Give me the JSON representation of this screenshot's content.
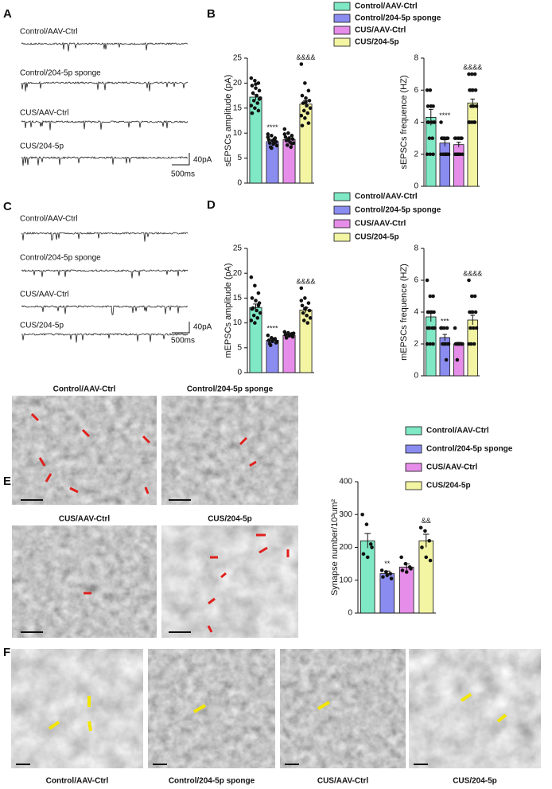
{
  "panel_letters": [
    "A",
    "B",
    "C",
    "D",
    "E",
    "F"
  ],
  "traces_A": [
    "Control/AAV-Ctrl",
    "Control/204-5p sponge",
    "CUS/AAV-Ctrl",
    "CUS/204-5p"
  ],
  "scale_A": {
    "y": "40pA",
    "x": "500ms"
  },
  "traces_C": [
    "Control/AAV-Ctrl",
    "Control/204-5p sponge",
    "CUS/AAV-Ctrl",
    "CUS/204-5p"
  ],
  "scale_C": {
    "y": "40pA",
    "x": "500ms"
  },
  "em_images": [
    "Control/AAV-Ctrl",
    "Control/204-5p sponge",
    "CUS/AAV-Ctrl",
    "CUS/204-5p"
  ],
  "f_images": [
    "Control/AAV-Ctrl",
    "Control/204-5p sponge",
    "CUS/AAV-Ctrl",
    "CUS/204-5p"
  ],
  "chart_data": [
    {
      "type": "bar",
      "ylabel": "sEPSCs amplitude (pA)",
      "legend": true,
      "categories": [
        "Control/AAV-Ctrl",
        "Control/204-5p sponge",
        "CUS/AAV-Ctrl",
        "CUS/204-5p"
      ],
      "colors": [
        "#7fe8c4",
        "#8b8cf0",
        "#e58de8",
        "#f3f5a3"
      ],
      "values": [
        17.2,
        8.3,
        8.7,
        15.8
      ],
      "errors": [
        0.5,
        0.3,
        0.3,
        0.7
      ],
      "points": [
        [
          21,
          20.5,
          20,
          19.5,
          19,
          18.5,
          18,
          17.5,
          17,
          16.5,
          16,
          15.5,
          15,
          14.5,
          14,
          19.8,
          16.8
        ],
        [
          9.8,
          9.5,
          9,
          8.7,
          8.5,
          8.3,
          8,
          7.8,
          7.5,
          7.2,
          8.8,
          9.2,
          7,
          8.1
        ],
        [
          10.8,
          10,
          9.5,
          9.2,
          9,
          8.8,
          8.5,
          8.2,
          8,
          7.6,
          7.2,
          9.8,
          8.6,
          7.9
        ],
        [
          23.8,
          20,
          18.5,
          17.5,
          17,
          16.5,
          16,
          15.5,
          15,
          14.5,
          14,
          13.5,
          13,
          12,
          11.5,
          16.2
        ]
      ],
      "annotations": [
        null,
        "****",
        null,
        "&&&&"
      ],
      "ylim": [
        0,
        25
      ],
      "yticks": [
        0,
        5,
        10,
        15,
        20,
        25
      ]
    },
    {
      "type": "bar",
      "ylabel": "sEPSCs frequence (HZ)",
      "legend": false,
      "colors": [
        "#7fe8c4",
        "#8b8cf0",
        "#e58de8",
        "#f3f5a3"
      ],
      "values": [
        4.3,
        2.7,
        2.6,
        5.2
      ],
      "errors": [
        0.5,
        0.2,
        0.15,
        0.25
      ],
      "points": [
        [
          6,
          6,
          5,
          5,
          5,
          4,
          4,
          4,
          4,
          3,
          3,
          2,
          2,
          2,
          4,
          5
        ],
        [
          4,
          3,
          3,
          3,
          3,
          3,
          3,
          2,
          2,
          2,
          2,
          2,
          2,
          2,
          3
        ],
        [
          3,
          3,
          3,
          3,
          3,
          3,
          2,
          2,
          2,
          2,
          2,
          2,
          2,
          3
        ],
        [
          7,
          7,
          7,
          6,
          6,
          6,
          6,
          5,
          5,
          5,
          4,
          4,
          4,
          4,
          4,
          6
        ]
      ],
      "annotations": [
        null,
        "****",
        null,
        "&&&&"
      ],
      "ylim": [
        0,
        8
      ],
      "yticks": [
        0,
        2,
        4,
        6,
        8
      ]
    },
    {
      "type": "bar",
      "ylabel": "mEPSCs amplitude (pA)",
      "legend": true,
      "categories": [
        "Control/AAV-Ctrl",
        "Control/204-5p sponge",
        "CUS/AAV-Ctrl",
        "CUS/204-5p"
      ],
      "colors": [
        "#7fe8c4",
        "#8b8cf0",
        "#e58de8",
        "#f3f5a3"
      ],
      "values": [
        13.1,
        6.5,
        7.5,
        12.6
      ],
      "errors": [
        0.7,
        0.2,
        0.2,
        0.5
      ],
      "points": [
        [
          19.2,
          17.5,
          16,
          15,
          14.5,
          14,
          13,
          12.5,
          12,
          11.5,
          11,
          10.5,
          10,
          13.5,
          12.8
        ],
        [
          7.5,
          7,
          6.8,
          6.5,
          6.3,
          6,
          5.8,
          6.7,
          6.2,
          5.5
        ],
        [
          8.2,
          8,
          7.8,
          7.6,
          7.4,
          7.2,
          7,
          7.5,
          7.9
        ],
        [
          17,
          15,
          14,
          13.5,
          13,
          12.5,
          12,
          11.5,
          11,
          10.5,
          10,
          14.5,
          12.8
        ]
      ],
      "annotations": [
        null,
        "****",
        null,
        "&&&&"
      ],
      "ylim": [
        0,
        25
      ],
      "yticks": [
        0,
        5,
        10,
        15,
        20,
        25
      ]
    },
    {
      "type": "bar",
      "ylabel": "mEPSCs frequence (HZ)",
      "legend": false,
      "colors": [
        "#7fe8c4",
        "#8b8cf0",
        "#e58de8",
        "#f3f5a3"
      ],
      "values": [
        3.7,
        2.4,
        2.0,
        3.5
      ],
      "errors": [
        0.3,
        0.2,
        0.1,
        0.3
      ],
      "points": [
        [
          6,
          5,
          5,
          4,
          4,
          4,
          4,
          4,
          3,
          3,
          3,
          2,
          2,
          2,
          3
        ],
        [
          3,
          3,
          3,
          3,
          2,
          2,
          2,
          2,
          2,
          2,
          1,
          3
        ],
        [
          3,
          2,
          2,
          2,
          2,
          2,
          2,
          2,
          2,
          1
        ],
        [
          6,
          5,
          5,
          4,
          4,
          4,
          3,
          3,
          3,
          2,
          2,
          2,
          4
        ]
      ],
      "annotations": [
        null,
        "***",
        null,
        "&&&&"
      ],
      "ylim": [
        0,
        8
      ],
      "yticks": [
        0,
        2,
        4,
        6,
        8
      ]
    },
    {
      "type": "bar",
      "ylabel": "Synapse number/10³um²",
      "legend": true,
      "categories": [
        "Control/AAV-Ctrl",
        "Control/204-5p sponge",
        "CUS/AAV-Ctrl",
        "CUS/204-5p"
      ],
      "colors": [
        "#7fe8c4",
        "#8b8cf0",
        "#e58de8",
        "#f3f5a3"
      ],
      "values": [
        220,
        120,
        140,
        220
      ],
      "errors": [
        22,
        8,
        10,
        20
      ],
      "points": [
        [
          300,
          270,
          210,
          180,
          170,
          200
        ],
        [
          130,
          125,
          120,
          110,
          115,
          105
        ],
        [
          170,
          150,
          140,
          130,
          125,
          135
        ],
        [
          260,
          250,
          220,
          200,
          170,
          160
        ]
      ],
      "annotations": [
        null,
        "**",
        null,
        "&&"
      ],
      "ylim": [
        0,
        400
      ],
      "yticks": [
        0,
        100,
        200,
        300,
        400
      ]
    }
  ]
}
